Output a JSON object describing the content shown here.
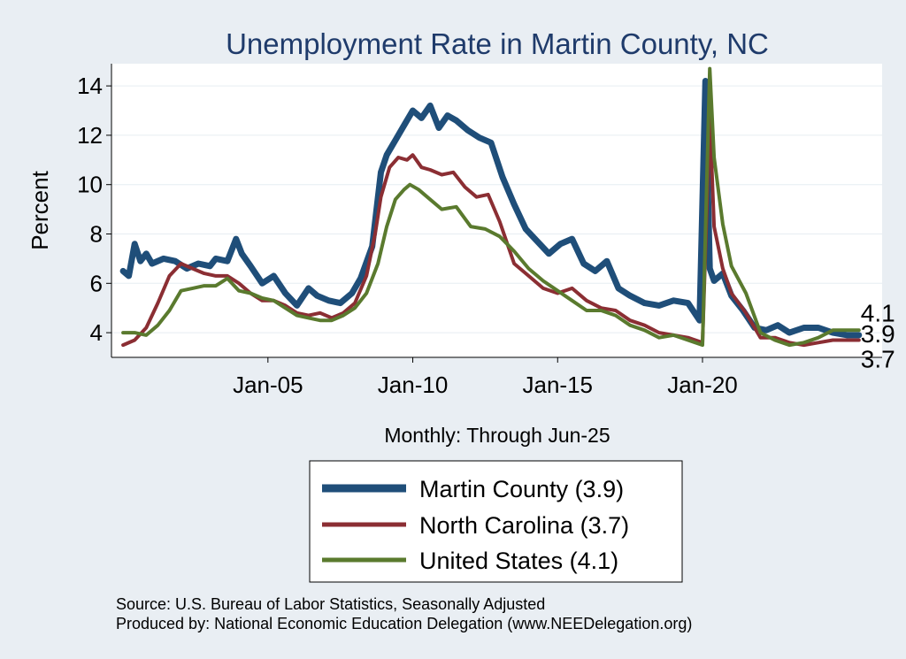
{
  "chart_data": {
    "type": "line",
    "title": "Unemployment Rate in Martin  County, NC",
    "ylabel": "Percent",
    "xlabel": "Monthly: Through Jun-25",
    "ylim": [
      3.0,
      14.9
    ],
    "xlim": [
      1999.6,
      2026.2
    ],
    "yticks": [
      4,
      6,
      8,
      10,
      12,
      14
    ],
    "xticks": [
      {
        "value": 2005,
        "label": "Jan-05"
      },
      {
        "value": 2010,
        "label": "Jan-10"
      },
      {
        "value": 2015,
        "label": "Jan-15"
      },
      {
        "value": 2020,
        "label": "Jan-20"
      }
    ],
    "colors": {
      "background": "#e9eef3",
      "plot": "#ffffff",
      "grid": "#e6edf2",
      "title": "#1f3b6b",
      "martin": "#1f4e79",
      "nc": "#8b2e33",
      "us": "#5a7a2e"
    },
    "series": [
      {
        "name": "Martin  County",
        "legend": "Martin  County (3.9)",
        "latest": "3.9",
        "x": [
          2000.0,
          2000.2,
          2000.4,
          2000.6,
          2000.8,
          2001.0,
          2001.4,
          2001.8,
          2002.2,
          2002.6,
          2003.0,
          2003.2,
          2003.6,
          2003.9,
          2004.1,
          2004.4,
          2004.8,
          2005.2,
          2005.6,
          2006.0,
          2006.4,
          2006.7,
          2007.1,
          2007.5,
          2007.9,
          2008.2,
          2008.6,
          2008.9,
          2009.1,
          2009.4,
          2009.7,
          2010.0,
          2010.3,
          2010.6,
          2010.9,
          2011.2,
          2011.5,
          2011.9,
          2012.3,
          2012.7,
          2013.1,
          2013.5,
          2013.9,
          2014.3,
          2014.7,
          2015.1,
          2015.5,
          2015.9,
          2016.3,
          2016.7,
          2017.1,
          2017.5,
          2018.0,
          2018.5,
          2019.0,
          2019.5,
          2019.9,
          2020.1,
          2020.25,
          2020.4,
          2020.7,
          2021.0,
          2021.4,
          2021.8,
          2022.2,
          2022.6,
          2023.0,
          2023.5,
          2024.0,
          2024.5,
          2025.0,
          2025.4
        ],
        "values": [
          6.5,
          6.3,
          7.6,
          6.9,
          7.2,
          6.8,
          7.0,
          6.9,
          6.6,
          6.8,
          6.7,
          7.0,
          6.9,
          7.8,
          7.2,
          6.7,
          6.0,
          6.3,
          5.6,
          5.1,
          5.8,
          5.5,
          5.3,
          5.2,
          5.6,
          6.2,
          7.5,
          10.5,
          11.2,
          11.8,
          12.4,
          13.0,
          12.7,
          13.2,
          12.3,
          12.8,
          12.6,
          12.2,
          11.9,
          11.7,
          10.3,
          9.2,
          8.2,
          7.7,
          7.2,
          7.6,
          7.8,
          6.8,
          6.5,
          6.9,
          5.8,
          5.5,
          5.2,
          5.1,
          5.3,
          5.2,
          4.5,
          14.2,
          6.6,
          6.1,
          6.4,
          5.5,
          4.9,
          4.2,
          4.1,
          4.3,
          4.0,
          4.2,
          4.2,
          4.0,
          3.9,
          3.9
        ]
      },
      {
        "name": "North Carolina",
        "legend": "North Carolina (3.7)",
        "latest": "3.7",
        "x": [
          2000.0,
          2000.4,
          2000.8,
          2001.2,
          2001.6,
          2002.0,
          2002.4,
          2002.8,
          2003.2,
          2003.6,
          2004.0,
          2004.4,
          2004.8,
          2005.2,
          2005.6,
          2006.0,
          2006.4,
          2006.8,
          2007.2,
          2007.6,
          2008.0,
          2008.4,
          2008.7,
          2008.9,
          2009.2,
          2009.5,
          2009.8,
          2010.0,
          2010.3,
          2010.6,
          2011.0,
          2011.4,
          2011.8,
          2012.2,
          2012.6,
          2013.0,
          2013.5,
          2014.0,
          2014.5,
          2015.0,
          2015.5,
          2016.0,
          2016.5,
          2017.0,
          2017.5,
          2018.0,
          2018.5,
          2019.0,
          2019.5,
          2020.0,
          2020.25,
          2020.4,
          2020.7,
          2021.0,
          2021.5,
          2022.0,
          2022.5,
          2023.0,
          2023.5,
          2024.0,
          2024.5,
          2025.0,
          2025.4
        ],
        "values": [
          3.5,
          3.7,
          4.2,
          5.2,
          6.3,
          6.8,
          6.6,
          6.4,
          6.3,
          6.3,
          6.0,
          5.6,
          5.3,
          5.3,
          5.1,
          4.8,
          4.7,
          4.8,
          4.6,
          4.8,
          5.2,
          6.3,
          8.0,
          9.5,
          10.7,
          11.1,
          11.0,
          11.2,
          10.7,
          10.6,
          10.4,
          10.5,
          9.9,
          9.5,
          9.6,
          8.5,
          6.8,
          6.3,
          5.8,
          5.6,
          5.8,
          5.3,
          5.0,
          4.9,
          4.5,
          4.3,
          4.0,
          3.9,
          3.8,
          3.6,
          12.8,
          8.3,
          6.6,
          5.6,
          4.8,
          3.8,
          3.8,
          3.6,
          3.5,
          3.6,
          3.7,
          3.7,
          3.7
        ]
      },
      {
        "name": "United States",
        "legend": "United States (4.1)",
        "latest": "4.1",
        "x": [
          2000.0,
          2000.4,
          2000.8,
          2001.2,
          2001.6,
          2002.0,
          2002.4,
          2002.8,
          2003.2,
          2003.6,
          2004.0,
          2004.4,
          2004.8,
          2005.2,
          2005.6,
          2006.0,
          2006.4,
          2006.8,
          2007.2,
          2007.6,
          2008.0,
          2008.4,
          2008.8,
          2009.1,
          2009.4,
          2009.7,
          2009.9,
          2010.2,
          2010.5,
          2011.0,
          2011.5,
          2012.0,
          2012.5,
          2013.0,
          2013.5,
          2014.0,
          2014.5,
          2015.0,
          2015.5,
          2016.0,
          2016.5,
          2017.0,
          2017.5,
          2018.0,
          2018.5,
          2019.0,
          2019.5,
          2020.0,
          2020.25,
          2020.4,
          2020.7,
          2021.0,
          2021.5,
          2022.0,
          2022.5,
          2023.0,
          2023.5,
          2024.0,
          2024.5,
          2025.0,
          2025.4
        ],
        "values": [
          4.0,
          4.0,
          3.9,
          4.3,
          4.9,
          5.7,
          5.8,
          5.9,
          5.9,
          6.2,
          5.7,
          5.6,
          5.4,
          5.3,
          5.0,
          4.7,
          4.6,
          4.5,
          4.5,
          4.7,
          5.0,
          5.6,
          6.8,
          8.3,
          9.4,
          9.8,
          10.0,
          9.8,
          9.5,
          9.0,
          9.1,
          8.3,
          8.2,
          7.9,
          7.3,
          6.6,
          6.1,
          5.7,
          5.3,
          4.9,
          4.9,
          4.7,
          4.3,
          4.1,
          3.8,
          3.9,
          3.7,
          3.5,
          14.7,
          11.1,
          8.4,
          6.7,
          5.6,
          4.0,
          3.7,
          3.5,
          3.6,
          3.8,
          4.1,
          4.1,
          4.1
        ]
      }
    ]
  }
}
